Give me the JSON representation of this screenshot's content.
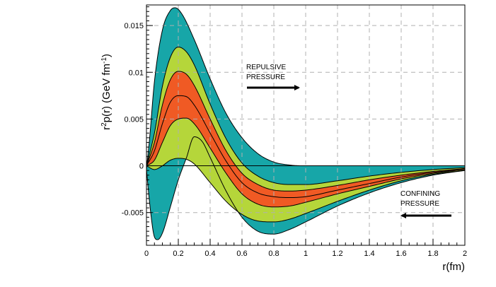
{
  "chart_data": {
    "type": "area",
    "xlabel": "r(fm)",
    "ylabel_base": "r",
    "ylabel_sup1": "2",
    "ylabel_mid": "p(r) (GeV fm",
    "ylabel_sup2": "-1",
    "ylabel_end": ")",
    "xlim": [
      0,
      2
    ],
    "ylim": [
      -0.0085,
      0.0172
    ],
    "grid": true,
    "x_ticks": [
      0,
      0.2,
      0.4,
      0.6,
      0.8,
      1,
      1.2,
      1.4,
      1.6,
      1.8,
      2
    ],
    "x_tick_labels": [
      "0",
      "0.2",
      "0.4",
      "0.6",
      "0.8",
      "1",
      "1.2",
      "1.4",
      "1.6",
      "1.8",
      "2"
    ],
    "y_ticks": [
      -0.005,
      0,
      0.005,
      0.01,
      0.015
    ],
    "y_tick_labels": [
      "-0.005",
      "0",
      "0.005",
      "0.01",
      "0.015"
    ],
    "annotations": {
      "repulsive_line1": "REPULSIVE",
      "repulsive_line2": "PRESSURE",
      "confining_line1": "CONFINING",
      "confining_line2": "PRESSURE"
    },
    "colors": {
      "outer_band": "#17a6a8",
      "middle_band": "#b5d63a",
      "inner_band": "#f05a24",
      "line": "#000000"
    },
    "curves": [
      {
        "id": "outer_upper",
        "x": [
          0,
          0.02,
          0.05,
          0.1,
          0.15,
          0.18,
          0.22,
          0.3,
          0.4,
          0.5,
          0.6,
          0.7,
          0.8,
          0.9,
          1.0,
          1.2,
          1.4,
          1.6,
          1.8,
          2.0
        ],
        "y": [
          -0.0004,
          0.003,
          0.009,
          0.0145,
          0.0166,
          0.0169,
          0.0163,
          0.0135,
          0.0093,
          0.0056,
          0.003,
          0.0013,
          0.0004,
          8e-05,
          0.0,
          0.0,
          0.0,
          0.0,
          0.0,
          0.0
        ]
      },
      {
        "id": "mid_upper",
        "x": [
          0,
          0.05,
          0.1,
          0.15,
          0.2,
          0.25,
          0.3,
          0.4,
          0.5,
          0.6,
          0.7,
          0.8,
          0.9,
          1.0,
          1.2,
          1.4,
          1.6,
          1.8,
          2.0
        ],
        "y": [
          0.0,
          0.0035,
          0.0085,
          0.0116,
          0.0127,
          0.0122,
          0.0108,
          0.0066,
          0.0029,
          0.0003,
          -0.0011,
          -0.0018,
          -0.002,
          -0.002,
          -0.0016,
          -0.0011,
          -0.0007,
          -0.0004,
          -0.0002
        ]
      },
      {
        "id": "inner_upper",
        "x": [
          0,
          0.05,
          0.1,
          0.15,
          0.2,
          0.25,
          0.3,
          0.4,
          0.5,
          0.6,
          0.7,
          0.8,
          0.9,
          1.0,
          1.2,
          1.4,
          1.6,
          1.8,
          2.0
        ],
        "y": [
          0.0,
          0.0025,
          0.0065,
          0.0092,
          0.0101,
          0.0098,
          0.0086,
          0.005,
          0.0016,
          -0.0008,
          -0.002,
          -0.0026,
          -0.0027,
          -0.0026,
          -0.0021,
          -0.0015,
          -0.001,
          -0.0006,
          -0.0003
        ]
      },
      {
        "id": "central",
        "x": [
          0,
          0.05,
          0.1,
          0.15,
          0.2,
          0.25,
          0.3,
          0.4,
          0.5,
          0.6,
          0.7,
          0.8,
          0.9,
          1.0,
          1.2,
          1.4,
          1.6,
          1.8,
          2.0
        ],
        "y": [
          0.0,
          0.0016,
          0.0045,
          0.0068,
          0.0075,
          0.0074,
          0.0065,
          0.0035,
          0.0005,
          -0.0018,
          -0.0029,
          -0.0033,
          -0.0034,
          -0.0033,
          -0.0026,
          -0.0019,
          -0.0012,
          -0.0007,
          -0.0004
        ]
      },
      {
        "id": "inner_lower",
        "x": [
          0,
          0.05,
          0.1,
          0.15,
          0.2,
          0.25,
          0.3,
          0.4,
          0.5,
          0.6,
          0.7,
          0.8,
          0.9,
          1.0,
          1.2,
          1.4,
          1.6,
          1.8,
          2.0
        ],
        "y": [
          0.0,
          0.0006,
          0.0025,
          0.0043,
          0.005,
          0.0051,
          0.0045,
          0.0019,
          -0.0008,
          -0.003,
          -0.0041,
          -0.0044,
          -0.0043,
          -0.0039,
          -0.003,
          -0.0022,
          -0.0014,
          -0.0008,
          -0.0004
        ]
      },
      {
        "id": "mid_lower",
        "x": [
          0,
          0.05,
          0.1,
          0.15,
          0.2,
          0.25,
          0.3,
          0.4,
          0.5,
          0.6,
          0.7,
          0.8,
          0.9,
          1.0,
          1.2,
          1.4,
          1.6,
          1.8,
          2.0
        ],
        "y": [
          0.0,
          -0.0004,
          0.0,
          0.0006,
          0.0008,
          0.0007,
          0.0002,
          -0.0018,
          -0.0038,
          -0.0052,
          -0.0059,
          -0.006,
          -0.0057,
          -0.0051,
          -0.0038,
          -0.0026,
          -0.0016,
          -0.0009,
          -0.0005
        ]
      },
      {
        "id": "outer_lower",
        "x": [
          0,
          0.02,
          0.05,
          0.07,
          0.1,
          0.15,
          0.2,
          0.25,
          0.3,
          0.35,
          0.4,
          0.5,
          0.6,
          0.7,
          0.8,
          0.9,
          1.0,
          1.2,
          1.4,
          1.6,
          1.8,
          2.0
        ],
        "y": [
          -0.0004,
          -0.004,
          -0.0076,
          -0.0079,
          -0.0072,
          -0.0044,
          -0.0015,
          0.0008,
          0.0031,
          0.0026,
          0.0009,
          -0.0027,
          -0.0055,
          -0.007,
          -0.0073,
          -0.0068,
          -0.006,
          -0.0043,
          -0.0029,
          -0.0018,
          -0.001,
          -0.0005
        ]
      }
    ]
  }
}
